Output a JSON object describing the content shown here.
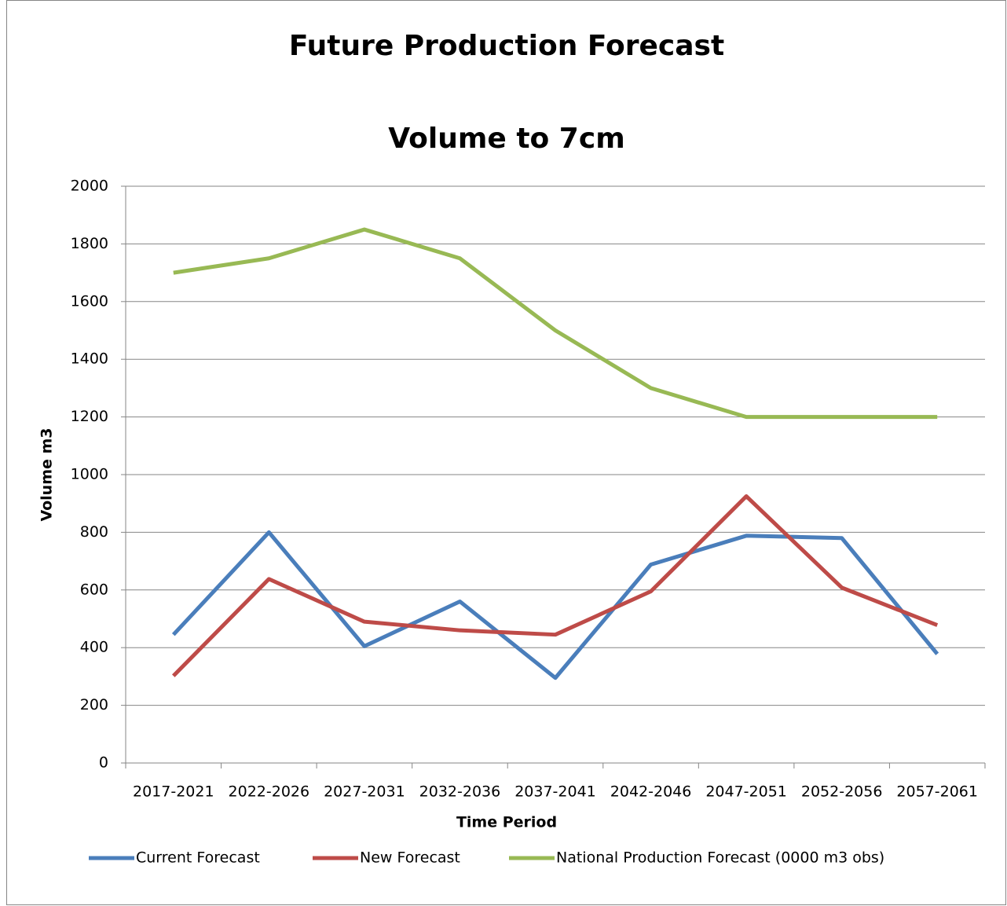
{
  "chart_data": {
    "type": "line",
    "title": "Future Production Forecast",
    "subtitle": "Volume to 7cm",
    "x_label": "Time Period",
    "y_label": "Volume m3",
    "categories": [
      "2017-2021",
      "2022-2026",
      "2027-2031",
      "2032-2036",
      "2037-2041",
      "2042-2046",
      "2047-2051",
      "2052-2056",
      "2057-2061"
    ],
    "series": [
      {
        "name": "Current Forecast",
        "color": "#4a7ebb",
        "values": [
          445,
          800,
          405,
          560,
          295,
          688,
          788,
          780,
          378
        ]
      },
      {
        "name": "New Forecast",
        "color": "#be4b48",
        "values": [
          302,
          638,
          490,
          460,
          445,
          595,
          925,
          608,
          478
        ]
      },
      {
        "name": "National Production Forecast (0000 m3 obs)",
        "color": "#98b954",
        "values": [
          1700,
          1750,
          1850,
          1750,
          1500,
          1300,
          1200,
          1200,
          1200
        ]
      }
    ],
    "ylim": [
      0,
      2000
    ],
    "yticks": [
      0,
      200,
      400,
      600,
      800,
      1000,
      1200,
      1400,
      1600,
      1800,
      2000
    ],
    "grid": true,
    "legend": "bottom"
  }
}
